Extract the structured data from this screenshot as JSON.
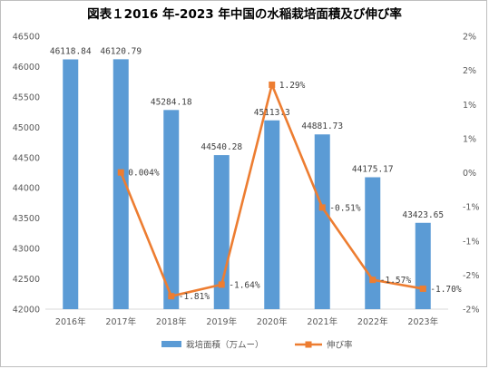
{
  "chart_data": {
    "type": "bar+line",
    "title": "図表１2016 年-2023 年中国の水稲栽培面積及び伸び率",
    "categories": [
      "2016年",
      "2017年",
      "2018年",
      "2019年",
      "2020年",
      "2021年",
      "2022年",
      "2023年"
    ],
    "series": [
      {
        "name": "栽培面積（万ムー）",
        "type": "bar",
        "axis": "left",
        "color": "#5b9bd5",
        "values": [
          46118.84,
          46120.79,
          45284.18,
          44540.28,
          45113.3,
          44881.73,
          44175.17,
          43423.65
        ],
        "labels": [
          "46118.84",
          "46120.79",
          "45284.18",
          "44540.28",
          "45113.3",
          "44881.73",
          "44175.17",
          "43423.65"
        ]
      },
      {
        "name": "伸び率",
        "type": "line",
        "axis": "right",
        "color": "#ed7d31",
        "values": [
          null,
          0.004,
          -1.81,
          -1.64,
          1.29,
          -0.51,
          -1.57,
          -1.7
        ],
        "labels": [
          null,
          "0.004%",
          "-1.81%",
          "-1.64%",
          "1.29%",
          "-0.51%",
          "-1.57%",
          "-1.70%"
        ]
      }
    ],
    "left_axis": {
      "min": 42000,
      "max": 46500,
      "step": 500,
      "ticks": [
        "42000",
        "42500",
        "43000",
        "43500",
        "44000",
        "44500",
        "45000",
        "45500",
        "46000",
        "46500"
      ]
    },
    "right_axis": {
      "min": -2,
      "max": 2,
      "step": 0.5,
      "ticks": [
        "-2%",
        "-2%",
        "-1%",
        "-1%",
        "0%",
        "1%",
        "1%",
        "2%",
        "2%"
      ]
    },
    "grid": false,
    "legend": "bottom"
  }
}
